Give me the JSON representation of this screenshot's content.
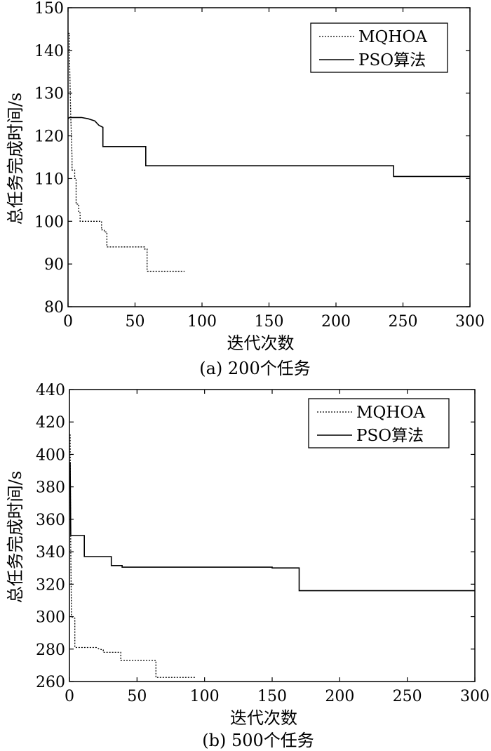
{
  "chart_data": [
    {
      "type": "line",
      "caption": "(a) 200个任务",
      "xlabel": "迭代次数",
      "ylabel": "总任务完成时间/s",
      "xlim": [
        0,
        300
      ],
      "ylim": [
        80,
        150
      ],
      "xticks": [
        0,
        50,
        100,
        150,
        200,
        250,
        300
      ],
      "yticks": [
        80,
        90,
        100,
        110,
        120,
        130,
        140,
        150
      ],
      "grid": false,
      "legend_position": "top-right",
      "series": [
        {
          "name": "MQHOA",
          "style": "dotted",
          "points": [
            [
              0,
              144
            ],
            [
              1,
              144
            ],
            [
              1,
              140
            ],
            [
              2,
              125
            ],
            [
              3,
              115
            ],
            [
              3,
              112
            ],
            [
              5,
              112
            ],
            [
              5,
              110
            ],
            [
              6,
              110
            ],
            [
              6,
              104
            ],
            [
              8,
              104
            ],
            [
              8,
              102
            ],
            [
              9,
              102
            ],
            [
              9,
              100
            ],
            [
              25,
              100
            ],
            [
              25,
              98
            ],
            [
              27,
              98
            ],
            [
              27,
              97.5
            ],
            [
              29,
              97.5
            ],
            [
              29,
              94
            ],
            [
              57,
              94
            ],
            [
              57,
              93.5
            ],
            [
              59,
              93.5
            ],
            [
              59,
              88.3
            ],
            [
              87,
              88.3
            ]
          ]
        },
        {
          "name": "PSO算法",
          "style": "solid",
          "points": [
            [
              0,
              124
            ],
            [
              1,
              124.3
            ],
            [
              10,
              124.3
            ],
            [
              15,
              124
            ],
            [
              20,
              123.5
            ],
            [
              23,
              122.5
            ],
            [
              26,
              122
            ],
            [
              26,
              117.5
            ],
            [
              58,
              117.5
            ],
            [
              58,
              113
            ],
            [
              243,
              113
            ],
            [
              243,
              110.5
            ],
            [
              300,
              110.5
            ]
          ]
        }
      ]
    },
    {
      "type": "line",
      "caption": "(b) 500个任务",
      "xlabel": "迭代次数",
      "ylabel": "总任务完成时间/s",
      "xlim": [
        0,
        300
      ],
      "ylim": [
        260,
        440
      ],
      "xticks": [
        0,
        50,
        100,
        150,
        200,
        250,
        300
      ],
      "yticks": [
        260,
        280,
        300,
        320,
        340,
        360,
        380,
        400,
        420,
        440
      ],
      "grid": false,
      "legend_position": "top-right",
      "series": [
        {
          "name": "MQHOA",
          "style": "dotted",
          "points": [
            [
              0,
              412
            ],
            [
              0.5,
              412
            ],
            [
              1,
              340
            ],
            [
              1.5,
              300
            ],
            [
              4,
              299
            ],
            [
              4,
              281
            ],
            [
              20,
              281
            ],
            [
              22,
              280
            ],
            [
              25,
              279.5
            ],
            [
              25,
              278
            ],
            [
              38,
              278
            ],
            [
              38,
              273
            ],
            [
              64,
              273
            ],
            [
              64,
              262.5
            ],
            [
              93,
              262.5
            ]
          ]
        },
        {
          "name": "PSO算法",
          "style": "solid",
          "points": [
            [
              0,
              395
            ],
            [
              0.5,
              395
            ],
            [
              1,
              350
            ],
            [
              11,
              350
            ],
            [
              11,
              337
            ],
            [
              31,
              337
            ],
            [
              31,
              331.5
            ],
            [
              39,
              331.5
            ],
            [
              39,
              330.5
            ],
            [
              150,
              330.5
            ],
            [
              150,
              330
            ],
            [
              170,
              330
            ],
            [
              170,
              316
            ],
            [
              300,
              316
            ]
          ]
        }
      ]
    }
  ]
}
